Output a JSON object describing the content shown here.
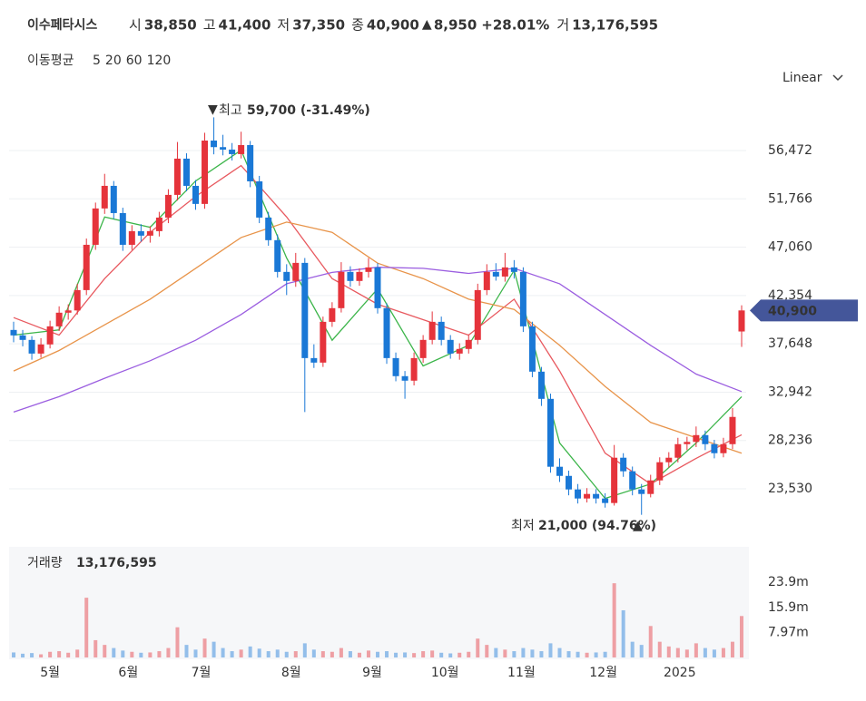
{
  "header": {
    "name": "이수페타시스",
    "fields": [
      {
        "label": "시",
        "value": "38,850"
      },
      {
        "label": "고",
        "value": "41,400"
      },
      {
        "label": "저",
        "value": "37,350"
      },
      {
        "label": "종",
        "value": "40,900"
      }
    ],
    "change": "8,950",
    "change_pct": "+28.01%",
    "volume_label": "거",
    "volume_value": "13,176,595"
  },
  "ma_title": "이동평균",
  "scale_mode": "Linear",
  "annotations": {
    "max_label": "최고",
    "max_value": "59,700 (-31.49%)",
    "min_label": "최저",
    "min_value": "21,000 (94.76%)"
  },
  "last_price_label": "40,900",
  "chart_data": {
    "type": "candlestick",
    "up_color": "#e5333b",
    "down_color": "#1a78d6",
    "grid": true,
    "xlim": [
      -0.5,
      80.5
    ],
    "xticks": [
      {
        "value": 4.0,
        "label": "5월"
      },
      {
        "value": 12.6,
        "label": "6월"
      },
      {
        "value": 20.6,
        "label": "7월"
      },
      {
        "value": 30.5,
        "label": "8월"
      },
      {
        "value": 39.4,
        "label": "9월"
      },
      {
        "value": 47.4,
        "label": "10월"
      },
      {
        "value": 55.8,
        "label": "11월"
      },
      {
        "value": 64.8,
        "label": "12월"
      },
      {
        "value": 73.2,
        "label": "2025"
      }
    ],
    "ylim": [
      19030,
      62296
    ],
    "yticks": [
      {
        "value": 23530,
        "label": "23,530"
      },
      {
        "value": 28236,
        "label": "28,236"
      },
      {
        "value": 32942,
        "label": "32,942"
      },
      {
        "value": 37648,
        "label": "37,648"
      },
      {
        "value": 42354,
        "label": "42,354"
      },
      {
        "value": 47060,
        "label": "47,060"
      },
      {
        "value": 51766,
        "label": "51,766"
      },
      {
        "value": 56472,
        "label": "56,472"
      }
    ],
    "ohlc": [
      [
        39000,
        39800,
        37800,
        38470
      ],
      [
        38470,
        39000,
        37400,
        38030
      ],
      [
        38030,
        38400,
        36100,
        36700
      ],
      [
        36700,
        38200,
        36300,
        37590
      ],
      [
        37590,
        39900,
        37200,
        39350
      ],
      [
        39350,
        41300,
        38900,
        40680
      ],
      [
        40680,
        41500,
        40000,
        40900
      ],
      [
        40900,
        43500,
        40500,
        42880
      ],
      [
        42880,
        47900,
        42400,
        47290
      ],
      [
        47290,
        51400,
        46800,
        50830
      ],
      [
        50830,
        54200,
        50300,
        53030
      ],
      [
        53030,
        53500,
        49800,
        50380
      ],
      [
        50380,
        50900,
        46700,
        47290
      ],
      [
        47290,
        49200,
        46800,
        48620
      ],
      [
        48620,
        49300,
        47600,
        48180
      ],
      [
        48180,
        49100,
        47500,
        48620
      ],
      [
        48620,
        50500,
        48100,
        49940
      ],
      [
        49940,
        52700,
        49400,
        52150
      ],
      [
        52150,
        57300,
        51600,
        55680
      ],
      [
        55680,
        56200,
        52500,
        53030
      ],
      [
        53030,
        53600,
        50700,
        51270
      ],
      [
        51270,
        58200,
        50800,
        57440
      ],
      [
        57440,
        59700,
        56100,
        56800
      ],
      [
        56800,
        58000,
        56000,
        56560
      ],
      [
        56560,
        57200,
        55500,
        56120
      ],
      [
        56120,
        58300,
        55700,
        57000
      ],
      [
        57000,
        57400,
        52900,
        53470
      ],
      [
        53470,
        54000,
        49400,
        49940
      ],
      [
        49940,
        50500,
        47200,
        47740
      ],
      [
        47740,
        48300,
        44100,
        44650
      ],
      [
        44650,
        45400,
        42400,
        43770
      ],
      [
        43770,
        46500,
        43200,
        45530
      ],
      [
        45530,
        46000,
        31000,
        36260
      ],
      [
        36260,
        37600,
        35300,
        35820
      ],
      [
        35820,
        40300,
        35400,
        39790
      ],
      [
        39790,
        41700,
        39300,
        41120
      ],
      [
        41120,
        45600,
        40700,
        44650
      ],
      [
        44650,
        45200,
        43200,
        43770
      ],
      [
        43770,
        45000,
        43300,
        44650
      ],
      [
        44650,
        46000,
        44100,
        45090
      ],
      [
        45090,
        45500,
        40600,
        41120
      ],
      [
        41120,
        41600,
        35700,
        36260
      ],
      [
        36260,
        36800,
        34000,
        34500
      ],
      [
        34500,
        35000,
        32300,
        34060
      ],
      [
        34060,
        36800,
        33600,
        36260
      ],
      [
        36260,
        38500,
        35800,
        38030
      ],
      [
        38030,
        40800,
        37600,
        39790
      ],
      [
        39790,
        40300,
        37500,
        38030
      ],
      [
        38030,
        38500,
        36200,
        36700
      ],
      [
        36700,
        37700,
        36100,
        37150
      ],
      [
        37150,
        38500,
        36700,
        38030
      ],
      [
        38030,
        43500,
        37600,
        42880
      ],
      [
        42880,
        45400,
        42400,
        44650
      ],
      [
        44650,
        45500,
        43800,
        44200
      ],
      [
        44200,
        46500,
        43700,
        45090
      ],
      [
        45090,
        45800,
        44000,
        44650
      ],
      [
        44650,
        45100,
        38800,
        39350
      ],
      [
        39350,
        39800,
        34400,
        34940
      ],
      [
        34940,
        35400,
        31600,
        32290
      ],
      [
        32290,
        32800,
        25100,
        25680
      ],
      [
        25680,
        26500,
        24200,
        24790
      ],
      [
        24790,
        25300,
        22900,
        23470
      ],
      [
        23470,
        24000,
        22100,
        22590
      ],
      [
        22590,
        23600,
        22200,
        23030
      ],
      [
        23030,
        23500,
        22100,
        22590
      ],
      [
        22590,
        23100,
        21700,
        22150
      ],
      [
        22150,
        27800,
        21900,
        26560
      ],
      [
        26560,
        27000,
        24700,
        25240
      ],
      [
        25240,
        25700,
        22900,
        23470
      ],
      [
        23470,
        24000,
        21000,
        23030
      ],
      [
        23030,
        24900,
        22700,
        24350
      ],
      [
        24350,
        26600,
        23900,
        26120
      ],
      [
        26120,
        27100,
        25600,
        26560
      ],
      [
        26560,
        28500,
        26100,
        27880
      ],
      [
        27880,
        28600,
        27300,
        28100
      ],
      [
        28100,
        29600,
        27600,
        28760
      ],
      [
        28760,
        29200,
        27300,
        27880
      ],
      [
        27880,
        28300,
        26500,
        27000
      ],
      [
        27000,
        28500,
        26600,
        27880
      ],
      [
        27880,
        31400,
        27400,
        30530
      ],
      [
        38850,
        41400,
        37350,
        40900
      ]
    ],
    "moving_averages": {
      "x": [
        0,
        5,
        10,
        15,
        20,
        25,
        30,
        35,
        40,
        45,
        50,
        55,
        60,
        65,
        70,
        75,
        80
      ],
      "series": [
        {
          "name": "5",
          "color": "#3cb54a",
          "values": [
            38500,
            39000,
            50000,
            49000,
            53500,
            56500,
            46000,
            38000,
            43000,
            35500,
            37500,
            44800,
            28000,
            22600,
            24000,
            28000,
            32500
          ]
        },
        {
          "name": "20",
          "color": "#e8595f",
          "values": [
            40200,
            38500,
            44000,
            48500,
            52000,
            55000,
            50000,
            44000,
            41500,
            40000,
            38500,
            42000,
            35000,
            27000,
            24000,
            26500,
            28800
          ]
        },
        {
          "name": "60",
          "color": "#e8944a",
          "values": [
            35000,
            37000,
            39500,
            42000,
            45000,
            48000,
            49500,
            48500,
            45500,
            44000,
            42000,
            41000,
            37500,
            33500,
            30000,
            28500,
            27000
          ]
        },
        {
          "name": "120",
          "color": "#9b5ee0",
          "values": [
            31000,
            32500,
            34300,
            36000,
            38000,
            40500,
            43500,
            44600,
            45100,
            45000,
            44500,
            45000,
            43500,
            40500,
            37500,
            34700,
            33000
          ]
        }
      ]
    },
    "volume": {
      "title": "거래량",
      "total": "13,176,595",
      "ylim": [
        0,
        34600000
      ],
      "yticks": [
        {
          "value": 7970000,
          "label": "7.97m"
        },
        {
          "value": 15900000,
          "label": "15.9m"
        },
        {
          "value": 23900000,
          "label": "23.9m"
        }
      ],
      "values": [
        1600000,
        1200000,
        1400000,
        1000000,
        1800000,
        2000000,
        1500000,
        2500000,
        19000000,
        5500000,
        4000000,
        3000000,
        2200000,
        1800000,
        1500000,
        1600000,
        2000000,
        3000000,
        9600000,
        4000000,
        2500000,
        6000000,
        5000000,
        3000000,
        2000000,
        2500000,
        3500000,
        2800000,
        2000000,
        2500000,
        1800000,
        2000000,
        4500000,
        2500000,
        2000000,
        1800000,
        3000000,
        2000000,
        1500000,
        2200000,
        1800000,
        2000000,
        1500000,
        1600000,
        1400000,
        2000000,
        2200000,
        1500000,
        1300000,
        1500000,
        1800000,
        6000000,
        4000000,
        3000000,
        2500000,
        2000000,
        3000000,
        2500000,
        2000000,
        4500000,
        3000000,
        2000000,
        1800000,
        1500000,
        1600000,
        1800000,
        23600000,
        15000000,
        5000000,
        4000000,
        10000000,
        5000000,
        3500000,
        3000000,
        2500000,
        4500000,
        3000000,
        2500000,
        3000000,
        5000000,
        13176595
      ]
    }
  }
}
